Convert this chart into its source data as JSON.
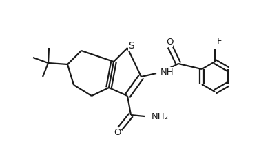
{
  "bg_color": "#ffffff",
  "line_color": "#1a1a1a",
  "line_width": 1.6,
  "font_size": 9.5,
  "figsize": [
    3.92,
    2.22
  ],
  "dpi": 100,
  "xlim": [
    0,
    3.92
  ],
  "ylim": [
    0,
    2.22
  ]
}
